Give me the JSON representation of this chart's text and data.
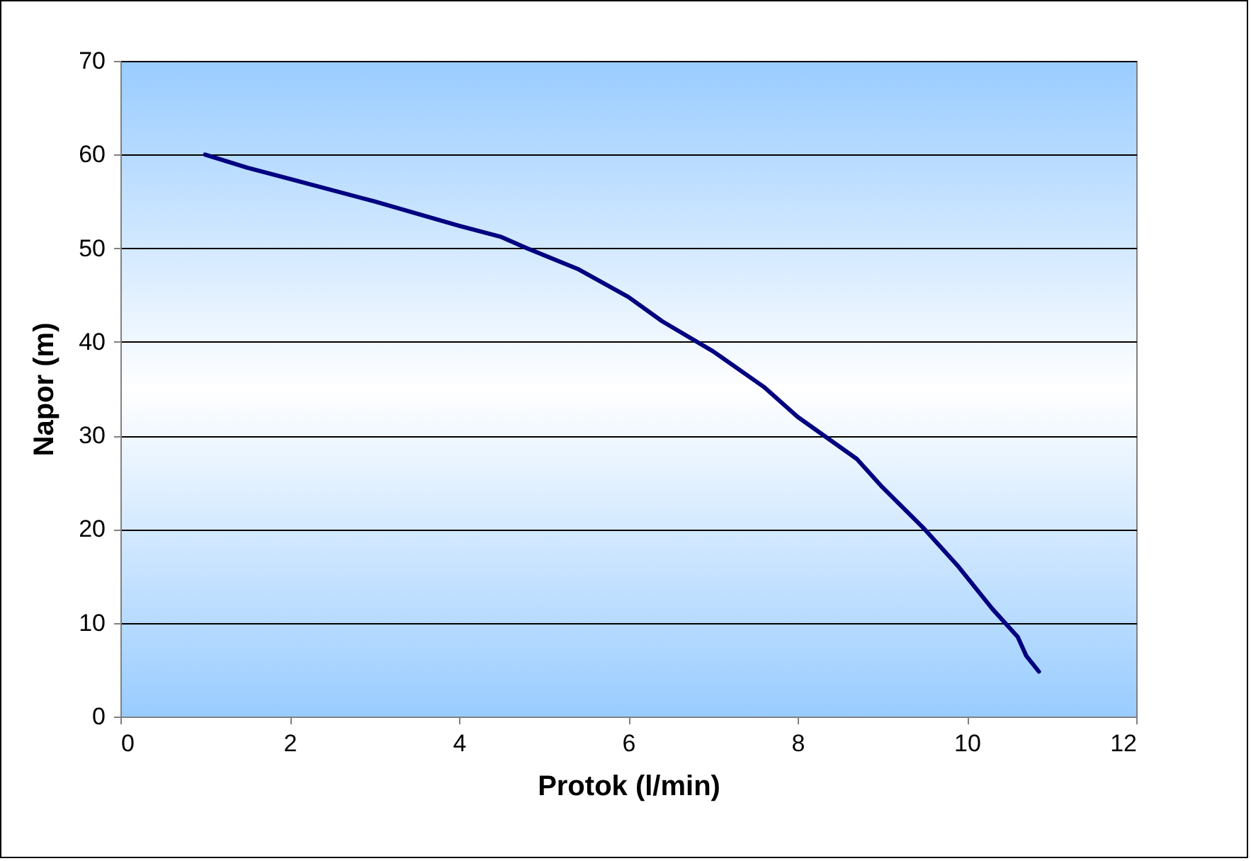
{
  "chart_data": {
    "type": "line",
    "xlabel": "Protok (l/min)",
    "ylabel": "Napor (m)",
    "x": [
      1,
      1.5,
      2,
      3,
      4,
      4.5,
      4.8,
      5.4,
      6,
      6.4,
      7,
      7.6,
      8,
      8.7,
      9,
      9.5,
      9.9,
      10.3,
      10.6,
      10.7,
      10.85
    ],
    "series": [
      {
        "color": "#000080",
        "values": [
          60,
          58.6,
          57.4,
          55,
          52.4,
          51.2,
          50,
          47.8,
          44.8,
          42.2,
          39,
          35.2,
          32,
          27.5,
          24.5,
          20,
          16,
          11.5,
          8.5,
          6.5,
          4.8
        ]
      }
    ],
    "xlim": [
      0,
      12
    ],
    "xticks": [
      0,
      2,
      4,
      6,
      8,
      10,
      12
    ],
    "ylim": [
      0,
      70
    ],
    "yticks": [
      0,
      10,
      20,
      30,
      40,
      50,
      60,
      70
    ],
    "grid": "y",
    "legend": false,
    "marker": "none",
    "line_style": "solid"
  }
}
